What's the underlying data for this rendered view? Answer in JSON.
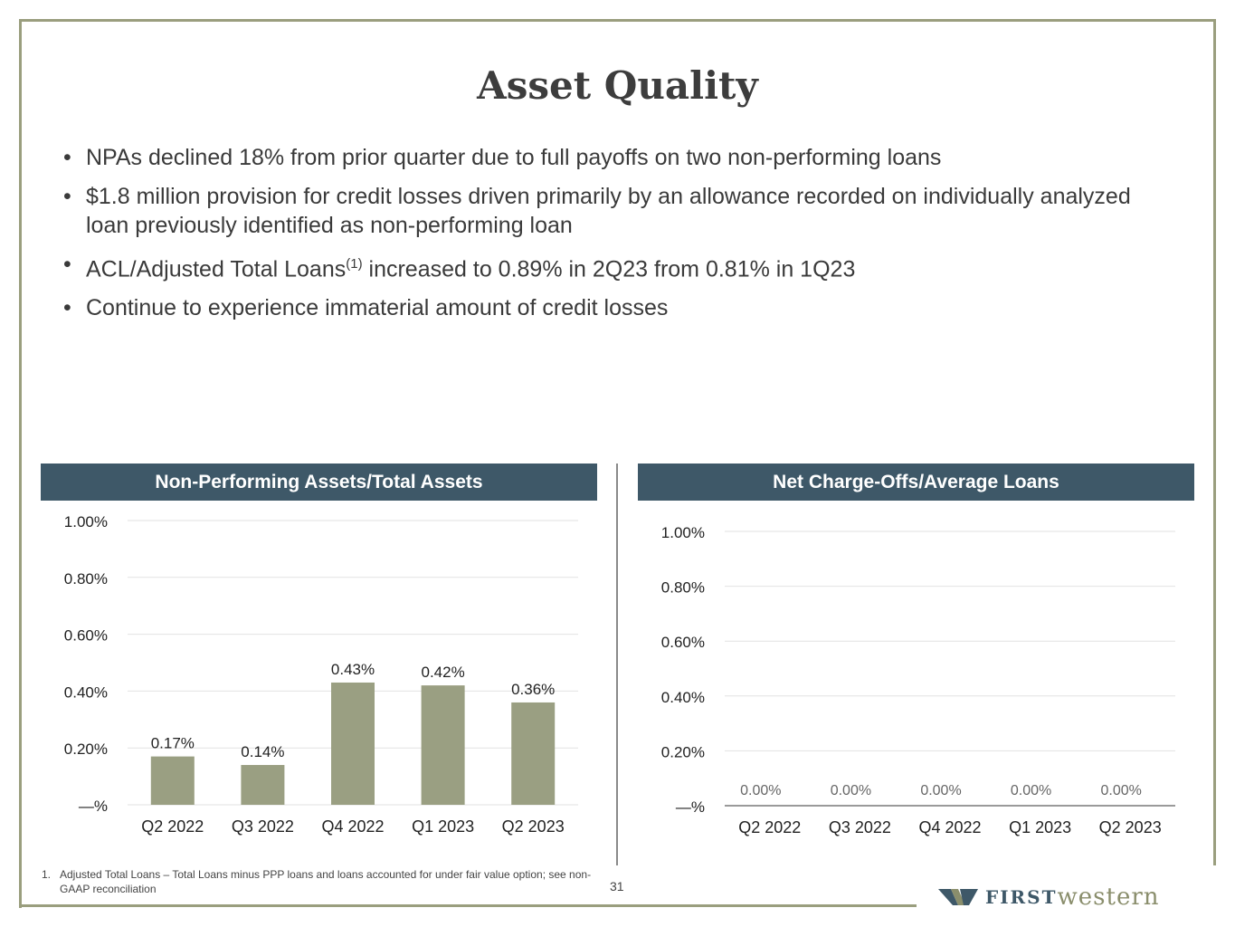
{
  "slide": {
    "title": "Asset Quality",
    "page_number": "31",
    "bullets": [
      {
        "text": "NPAs declined 18% from prior quarter due to full payoffs on two non-performing loans"
      },
      {
        "text": "$1.8 million provision for credit losses driven primarily by an allowance recorded on individually analyzed loan previously identified as non-performing loan"
      },
      {
        "text_before": "ACL/Adjusted Total Loans",
        "superscript": "(1)",
        "text_after": " increased to 0.89% in 2Q23 from 0.81% in 1Q23"
      },
      {
        "text": "Continue to experience immaterial amount of credit losses"
      }
    ],
    "footnote": {
      "number": "1.",
      "text": "Adjusted Total Loans – Total Loans minus PPP loans and loans accounted for under fair value option; see non-GAAP reconciliation"
    },
    "logo": {
      "word1": "FIRST",
      "word2": "western"
    },
    "colors": {
      "bar": "#9a9f82",
      "header": "#3e5868",
      "frame": "#9a9e7e"
    }
  },
  "chart_data": [
    {
      "type": "bar",
      "title": "Non-Performing Assets/Total Assets",
      "categories": [
        "Q2 2022",
        "Q3 2022",
        "Q4 2022",
        "Q1 2023",
        "Q2 2023"
      ],
      "values": [
        0.17,
        0.14,
        0.43,
        0.42,
        0.36
      ],
      "data_labels": [
        "0.17%",
        "0.14%",
        "0.43%",
        "0.42%",
        "0.36%"
      ],
      "ylim": [
        0,
        1.0
      ],
      "yticks": [
        "—%",
        "0.20%",
        "0.40%",
        "0.60%",
        "0.80%",
        "1.00%"
      ],
      "xlabel": "",
      "ylabel": ""
    },
    {
      "type": "bar",
      "title": "Net Charge-Offs/Average Loans",
      "categories": [
        "Q2 2022",
        "Q3 2022",
        "Q4 2022",
        "Q1 2023",
        "Q2 2023"
      ],
      "values": [
        0.0,
        0.0,
        0.0,
        0.0,
        0.0
      ],
      "data_labels": [
        "0.00%",
        "0.00%",
        "0.00%",
        "0.00%",
        "0.00%"
      ],
      "ylim": [
        0,
        1.0
      ],
      "yticks": [
        "—%",
        "0.20%",
        "0.40%",
        "0.60%",
        "0.80%",
        "1.00%"
      ],
      "xlabel": "",
      "ylabel": ""
    }
  ]
}
